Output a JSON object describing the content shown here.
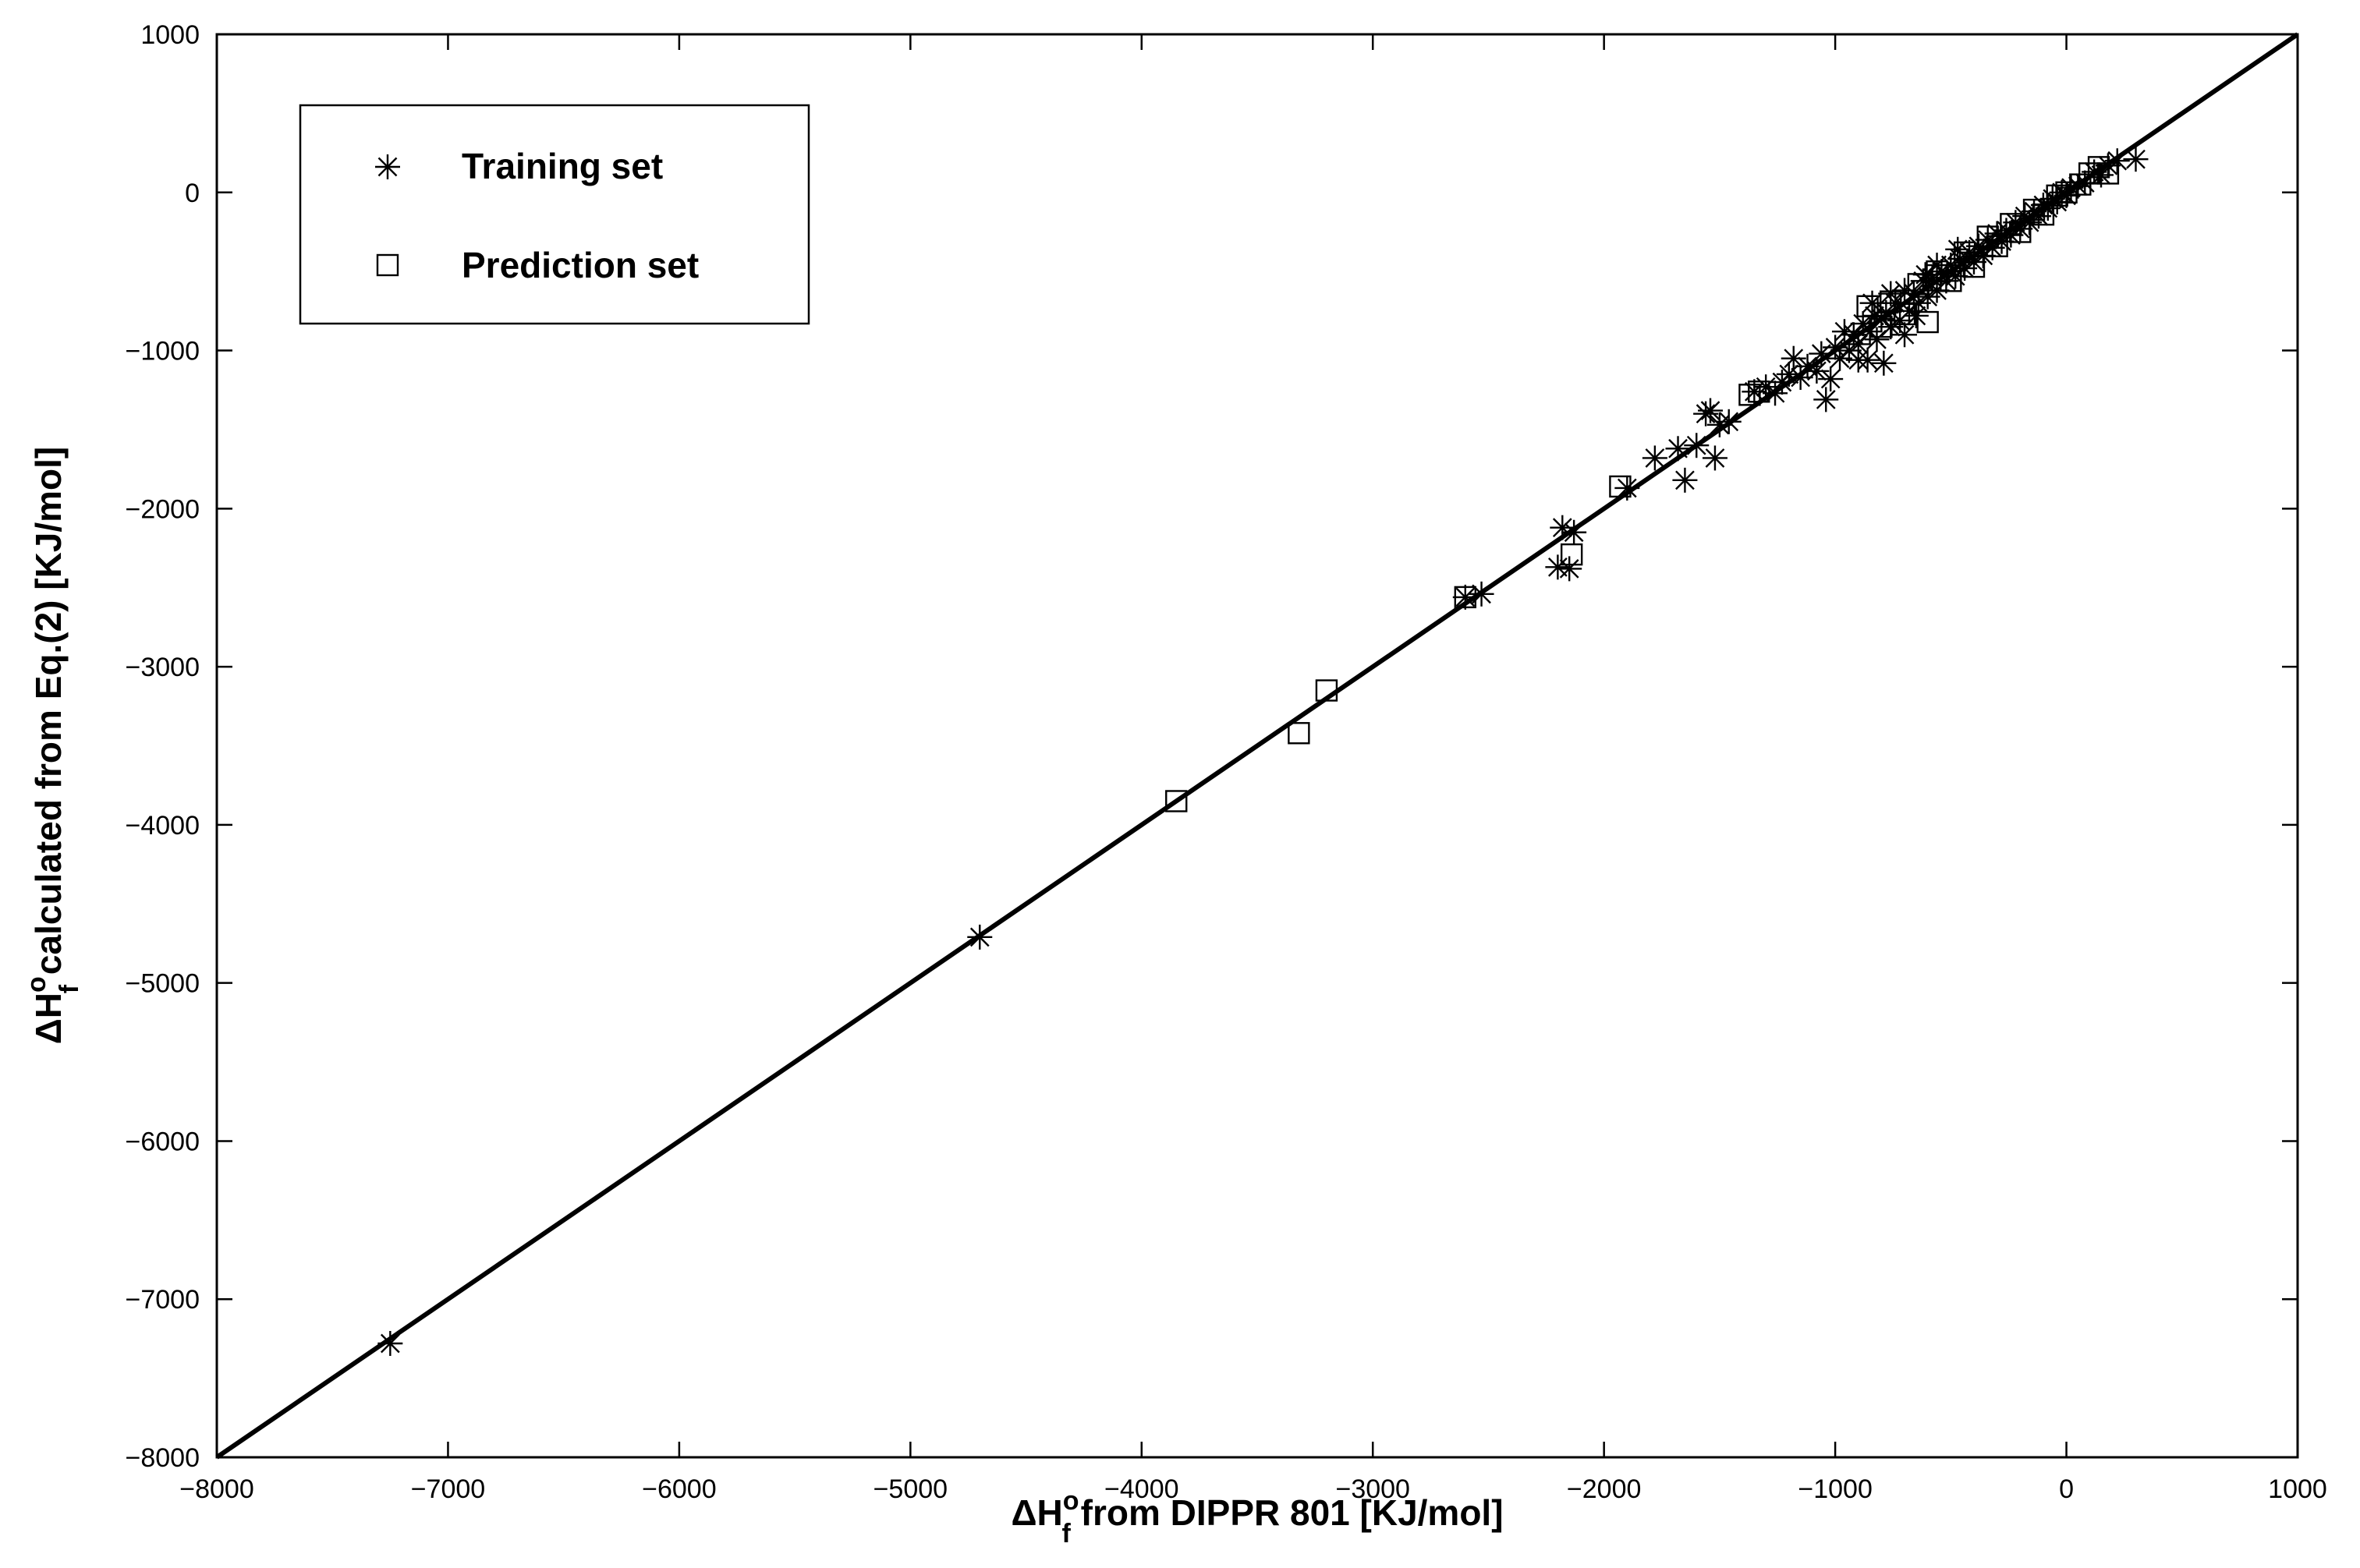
{
  "chart_data": {
    "type": "scatter",
    "xlabel": {
      "prefix": "ΔH",
      "sub": "f",
      "sup": "o",
      "suffix": " from DIPPR 801 [KJ/mol]"
    },
    "ylabel": {
      "prefix": "ΔH",
      "sub": "f",
      "sup": "o",
      "suffix": " calculated from Eq.(2) [KJ/mol]"
    },
    "xlim": [
      -8000,
      1000
    ],
    "ylim": [
      -8000,
      1000
    ],
    "xticks": [
      -8000,
      -7000,
      -6000,
      -5000,
      -4000,
      -3000,
      -2000,
      -1000,
      0,
      1000
    ],
    "yticks": [
      -8000,
      -7000,
      -6000,
      -5000,
      -4000,
      -3000,
      -2000,
      -1000,
      0,
      1000
    ],
    "xtick_labels": [
      "−8000",
      "−7000",
      "−6000",
      "−5000",
      "−4000",
      "−3000",
      "−2000",
      "−1000",
      "0",
      "1000"
    ],
    "ytick_labels": [
      "−8000",
      "−7000",
      "−6000",
      "−5000",
      "−4000",
      "−3000",
      "−2000",
      "−1000",
      "0",
      "1000"
    ],
    "grid": false,
    "legend": {
      "position": "top-left",
      "entries": [
        "Training set",
        "Prediction set"
      ]
    },
    "reference_line": {
      "x": [
        -8000,
        1000
      ],
      "y": [
        -8000,
        1000
      ]
    },
    "series": [
      {
        "name": "Training set",
        "marker": "asterisk",
        "points": [
          [
            -7250,
            -7280
          ],
          [
            -4700,
            -4710
          ],
          [
            -2200,
            -2370
          ],
          [
            -2180,
            -2120
          ],
          [
            -2150,
            -2380
          ],
          [
            -2130,
            -2150
          ],
          [
            -2600,
            -2560
          ],
          [
            -2530,
            -2540
          ],
          [
            -1900,
            -1870
          ],
          [
            -1780,
            -1680
          ],
          [
            -1680,
            -1620
          ],
          [
            -1650,
            -1820
          ],
          [
            -1600,
            -1600
          ],
          [
            -1560,
            -1400
          ],
          [
            -1540,
            -1380
          ],
          [
            -1520,
            -1680
          ],
          [
            -1500,
            -1470
          ],
          [
            -1460,
            -1450
          ],
          [
            -1350,
            -1260
          ],
          [
            -1300,
            -1230
          ],
          [
            -1260,
            -1270
          ],
          [
            -1230,
            -1200
          ],
          [
            -1200,
            -1150
          ],
          [
            -1180,
            -1050
          ],
          [
            -1150,
            -1170
          ],
          [
            -1120,
            -1100
          ],
          [
            -1080,
            -1130
          ],
          [
            -1060,
            -1020
          ],
          [
            -1040,
            -1310
          ],
          [
            -1020,
            -1180
          ],
          [
            -1000,
            -980
          ],
          [
            -980,
            -1050
          ],
          [
            -960,
            -880
          ],
          [
            -940,
            -1000
          ],
          [
            -920,
            -900
          ],
          [
            -900,
            -960
          ],
          [
            -880,
            -830
          ],
          [
            -860,
            -1060
          ],
          [
            -850,
            -880
          ],
          [
            -840,
            -700
          ],
          [
            -820,
            -930
          ],
          [
            -800,
            -800
          ],
          [
            -790,
            -1080
          ],
          [
            -780,
            -760
          ],
          [
            -760,
            -850
          ],
          [
            -740,
            -700
          ],
          [
            -720,
            -810
          ],
          [
            -700,
            -620
          ],
          [
            -680,
            -750
          ],
          [
            -660,
            -640
          ],
          [
            -640,
            -700
          ],
          [
            -620,
            -560
          ],
          [
            -600,
            -660
          ],
          [
            -580,
            -540
          ],
          [
            -560,
            -620
          ],
          [
            -540,
            -500
          ],
          [
            -520,
            -560
          ],
          [
            -500,
            -460
          ],
          [
            -480,
            -530
          ],
          [
            -460,
            -420
          ],
          [
            -440,
            -480
          ],
          [
            -420,
            -380
          ],
          [
            -400,
            -440
          ],
          [
            -380,
            -340
          ],
          [
            -360,
            -400
          ],
          [
            -340,
            -300
          ],
          [
            -320,
            -350
          ],
          [
            -300,
            -260
          ],
          [
            -280,
            -310
          ],
          [
            -260,
            -240
          ],
          [
            -240,
            -270
          ],
          [
            -220,
            -190
          ],
          [
            -200,
            -230
          ],
          [
            -180,
            -150
          ],
          [
            -160,
            -190
          ],
          [
            -140,
            -120
          ],
          [
            -120,
            -150
          ],
          [
            -100,
            -80
          ],
          [
            -80,
            -100
          ],
          [
            -60,
            -40
          ],
          [
            -40,
            -60
          ],
          [
            -20,
            0
          ],
          [
            0,
            -20
          ],
          [
            20,
            30
          ],
          [
            50,
            40
          ],
          [
            80,
            60
          ],
          [
            120,
            130
          ],
          [
            150,
            110
          ],
          [
            180,
            170
          ],
          [
            220,
            200
          ],
          [
            300,
            210
          ],
          [
            -700,
            -900
          ],
          [
            -650,
            -780
          ],
          [
            -560,
            -460
          ],
          [
            -470,
            -360
          ],
          [
            -900,
            -1060
          ],
          [
            -830,
            -780
          ],
          [
            -760,
            -640
          ],
          [
            -610,
            -520
          ]
        ]
      },
      {
        "name": "Prediction set",
        "marker": "square",
        "points": [
          [
            -3850,
            -3850
          ],
          [
            -3320,
            -3420
          ],
          [
            -3200,
            -3150
          ],
          [
            -2600,
            -2560
          ],
          [
            -2140,
            -2290
          ],
          [
            -1930,
            -1860
          ],
          [
            -1370,
            -1280
          ],
          [
            -1330,
            -1260
          ],
          [
            -860,
            -720
          ],
          [
            -800,
            -850
          ],
          [
            -760,
            -690
          ],
          [
            -700,
            -770
          ],
          [
            -640,
            -580
          ],
          [
            -600,
            -820
          ],
          [
            -560,
            -500
          ],
          [
            -500,
            -560
          ],
          [
            -440,
            -380
          ],
          [
            -400,
            -470
          ],
          [
            -340,
            -280
          ],
          [
            -300,
            -340
          ],
          [
            -240,
            -200
          ],
          [
            -200,
            -250
          ],
          [
            -140,
            -110
          ],
          [
            -100,
            -140
          ],
          [
            -40,
            -20
          ],
          [
            0,
            0
          ],
          [
            60,
            50
          ],
          [
            100,
            120
          ],
          [
            140,
            160
          ],
          [
            180,
            120
          ]
        ]
      }
    ]
  }
}
